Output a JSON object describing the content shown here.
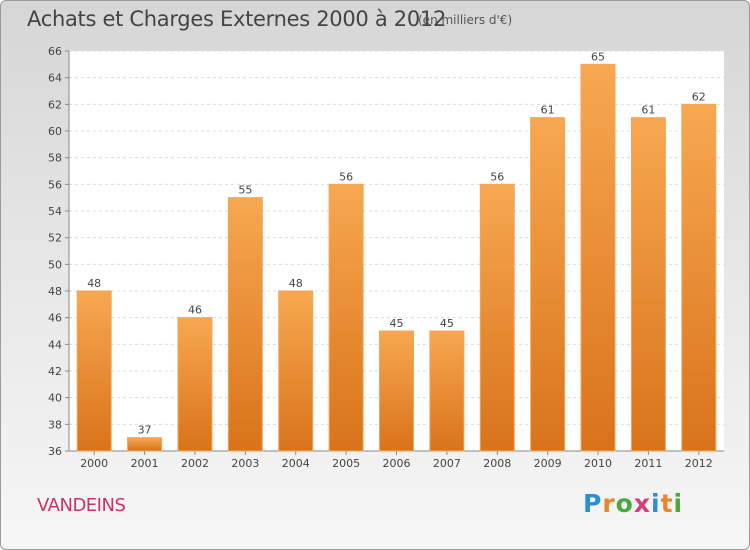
{
  "chart_data": {
    "type": "bar",
    "title": "Achats et Charges Externes 2000 à 2012",
    "subtitle": "(en milliers d'€)",
    "categories": [
      "2000",
      "2001",
      "2002",
      "2003",
      "2004",
      "2005",
      "2006",
      "2007",
      "2008",
      "2009",
      "2010",
      "2011",
      "2012"
    ],
    "values": [
      48,
      37,
      46,
      55,
      48,
      56,
      45,
      45,
      56,
      61,
      65,
      61,
      62
    ],
    "ylim": [
      36,
      66
    ],
    "yticks": [
      36,
      38,
      40,
      42,
      44,
      46,
      48,
      50,
      52,
      54,
      56,
      58,
      60,
      62,
      64,
      66
    ],
    "grid": true,
    "bar_color": "#f0922e",
    "xlabel": "",
    "ylabel": ""
  },
  "commune": "VANDEINS",
  "logo": {
    "letters": [
      "P",
      "r",
      "o",
      "x",
      "i",
      "t",
      "i"
    ],
    "colors": [
      "#2a8fd6",
      "#e8862b",
      "#4aa83c",
      "#d63c7a",
      "#2a8fd6",
      "#e8862b",
      "#4aa83c"
    ]
  }
}
